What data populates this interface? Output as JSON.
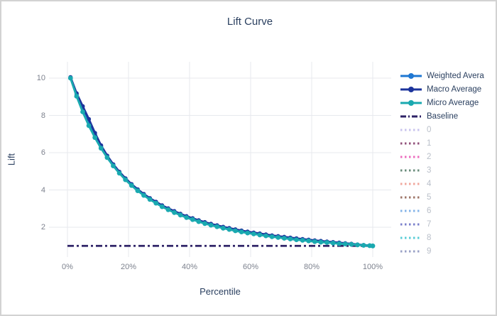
{
  "window": {
    "background": "#ffffff",
    "border_color": "#d2d2d2"
  },
  "text": {
    "title": "Lift Curve",
    "xlabel": "Percentile",
    "ylabel": "Lift"
  },
  "colors": {
    "weighted_average": "#1f77d2",
    "macro_average": "#1c349c",
    "micro_average": "#1aa9b0",
    "baseline": "#2e2266",
    "grid": "#e7e9ee",
    "tick_text": "#7d828e",
    "title_text": "#2a3f5f",
    "inactive_text": "#b9bfc9"
  },
  "chart_data": {
    "type": "line",
    "title": "Lift Curve",
    "xlabel": "Percentile",
    "ylabel": "Lift",
    "grid": true,
    "legend_position": "right",
    "x_tick_labels": [
      "0%",
      "20%",
      "40%",
      "60%",
      "80%",
      "100%"
    ],
    "x_tick_pct": [
      0,
      20,
      40,
      60,
      80,
      100
    ],
    "y_tick_values": [
      2,
      4,
      6,
      8,
      10
    ],
    "x_range_pct": [
      -6,
      106
    ],
    "y_range": [
      0.4,
      10.9
    ],
    "x_pct": [
      1,
      3,
      5,
      7,
      9,
      11,
      13,
      15,
      17,
      19,
      21,
      23,
      25,
      27,
      29,
      31,
      33,
      35,
      37,
      39,
      41,
      43,
      45,
      47,
      49,
      51,
      53,
      55,
      57,
      59,
      61,
      63,
      65,
      67,
      69,
      71,
      73,
      75,
      77,
      79,
      81,
      83,
      85,
      87,
      89,
      91,
      93,
      95,
      97,
      99,
      100
    ],
    "series": [
      {
        "name": "Weighted Avera",
        "color": "#1f77d2",
        "style": "line-marker",
        "active": true,
        "values": [
          10.03,
          9.12,
          8.37,
          7.66,
          6.96,
          6.33,
          5.8,
          5.34,
          4.94,
          4.59,
          4.28,
          4.0,
          3.75,
          3.53,
          3.33,
          3.14,
          2.98,
          2.83,
          2.69,
          2.56,
          2.45,
          2.34,
          2.24,
          2.15,
          2.07,
          1.99,
          1.92,
          1.85,
          1.79,
          1.73,
          1.68,
          1.63,
          1.58,
          1.53,
          1.49,
          1.45,
          1.41,
          1.37,
          1.34,
          1.31,
          1.27,
          1.24,
          1.21,
          1.18,
          1.15,
          1.12,
          1.1,
          1.06,
          1.04,
          1.02,
          1.0
        ]
      },
      {
        "name": "Macro Average",
        "color": "#1c349c",
        "style": "line-marker",
        "active": true,
        "values": [
          10.05,
          9.18,
          8.49,
          7.8,
          7.06,
          6.39,
          5.84,
          5.37,
          4.97,
          4.62,
          4.31,
          4.03,
          3.78,
          3.56,
          3.36,
          3.17,
          3.01,
          2.86,
          2.72,
          2.59,
          2.48,
          2.37,
          2.27,
          2.18,
          2.1,
          2.02,
          1.95,
          1.88,
          1.82,
          1.76,
          1.71,
          1.66,
          1.61,
          1.56,
          1.52,
          1.48,
          1.44,
          1.4,
          1.36,
          1.33,
          1.29,
          1.26,
          1.23,
          1.2,
          1.17,
          1.14,
          1.11,
          1.07,
          1.04,
          1.02,
          1.0
        ]
      },
      {
        "name": "Micro Average",
        "color": "#1aa9b0",
        "style": "line-marker",
        "active": true,
        "values": [
          10.0,
          9.03,
          8.19,
          7.45,
          6.81,
          6.24,
          5.74,
          5.29,
          4.9,
          4.55,
          4.24,
          3.96,
          3.71,
          3.49,
          3.29,
          3.1,
          2.94,
          2.79,
          2.65,
          2.52,
          2.41,
          2.3,
          2.2,
          2.11,
          2.03,
          1.95,
          1.88,
          1.81,
          1.75,
          1.69,
          1.64,
          1.59,
          1.54,
          1.49,
          1.45,
          1.41,
          1.37,
          1.33,
          1.3,
          1.27,
          1.23,
          1.2,
          1.18,
          1.15,
          1.12,
          1.1,
          1.08,
          1.05,
          1.03,
          1.01,
          1.0
        ]
      },
      {
        "name": "Baseline",
        "color": "#2e2266",
        "style": "dashdot",
        "active": true,
        "x": [
          0,
          100
        ],
        "values": [
          1,
          1
        ]
      }
    ],
    "inactive_classes": [
      {
        "label": "0",
        "color": "#c8c3ed"
      },
      {
        "label": "1",
        "color": "#92527b"
      },
      {
        "label": "2",
        "color": "#ec6cbe"
      },
      {
        "label": "3",
        "color": "#6b8d7c"
      },
      {
        "label": "4",
        "color": "#f0a79c"
      },
      {
        "label": "5",
        "color": "#9e7668"
      },
      {
        "label": "6",
        "color": "#85b4e8"
      },
      {
        "label": "7",
        "color": "#7b80cb"
      },
      {
        "label": "8",
        "color": "#58ccd6"
      },
      {
        "label": "9",
        "color": "#99a1c6"
      }
    ]
  }
}
